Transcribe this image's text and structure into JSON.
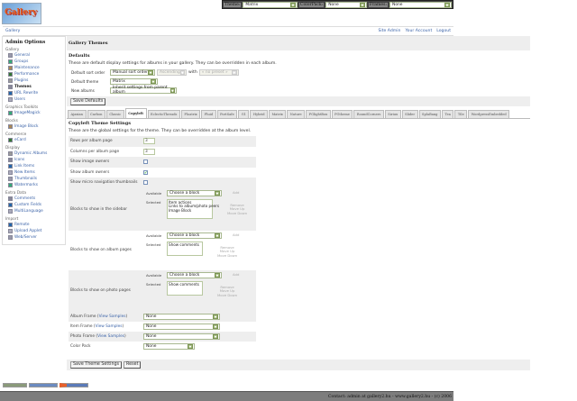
{
  "topbar": {
    "theme_label": "Theme:",
    "theme_value": "Matrix",
    "colorpack_label": "ColorPack:",
    "colorpack_value": "None",
    "frames_label": "Frames:",
    "frames_value": "None"
  },
  "logo": {
    "text": "Gallery"
  },
  "breadcrumb": {
    "root": "Gallery",
    "links": [
      "Site Admin",
      "Your Account",
      "Logout"
    ]
  },
  "sidebar": {
    "title": "Admin Options",
    "groups": [
      {
        "label": "Gallery",
        "items": [
          "General",
          "Groups",
          "Maintenance",
          "Performance",
          "Plugins",
          "Themes",
          "URL Rewrite",
          "Users"
        ]
      },
      {
        "label": "Graphics Toolkits",
        "items": [
          "ImageMagick"
        ]
      },
      {
        "label": "Blocks",
        "items": [
          "Image Block"
        ]
      },
      {
        "label": "Commerce",
        "items": [
          "eCard"
        ]
      },
      {
        "label": "Display",
        "items": [
          "Dynamic Albums",
          "Icons",
          "Link Items",
          "New Items",
          "Thumbnails",
          "Watermarks"
        ]
      },
      {
        "label": "Extra Data",
        "items": [
          "Comments",
          "Custom Fields",
          "MultiLanguage"
        ]
      },
      {
        "label": "Import",
        "items": [
          "Remote",
          "Upload Applet",
          "Web/Server"
        ]
      }
    ],
    "current": "Themes"
  },
  "main": {
    "title": "Gallery Themes",
    "defaults": {
      "heading": "Defaults",
      "description": "These are default display settings for albums in your gallery. They can be overridden in each album.",
      "sort_label": "Default sort order",
      "sort_value": "Manual sort order",
      "direction_value": "Ascending",
      "with_label": "with",
      "preset_value": "« no preset »",
      "theme_label": "Default theme",
      "theme_value": "Matrix",
      "new_albums_label": "New albums",
      "new_albums_value": "Inherit settings from parent album",
      "save_button": "Save Defaults"
    },
    "tabs": [
      "Ajaxian",
      "Carbon",
      "Classic",
      "Copyleft",
      "EclecticThreads",
      "Floatrix",
      "Fluid",
      "PortSafe",
      "G1",
      "Hybrid",
      "Matrix",
      "Nature",
      "PGlightBox",
      "PGtheme",
      "RoundCorners",
      "Siriux",
      "Slider",
      "SplaBang",
      "Tea",
      "Tile",
      "WordpressEmbedded"
    ],
    "active_tab": "Copyleft",
    "settings": {
      "heading": "Copyleft Theme Settings",
      "description": "These are the global settings for the theme. They can be overridden at the album level.",
      "rows_label": "Rows per album page",
      "rows_value": "3",
      "cols_label": "Columns per album page",
      "cols_value": "3",
      "show_image_owners": "Show image owners",
      "show_image_owners_checked": false,
      "show_album_owners": "Show album owners",
      "show_album_owners_checked": true,
      "show_micro_nav": "Show micro navigation thumbnails",
      "show_micro_nav_checked": false,
      "available_label": "Available",
      "selected_label": "Selected",
      "choose": "Choose a block",
      "add": "Add",
      "remove": "Remove",
      "move_up": "Move Up",
      "move_down": "Move Down",
      "blocks": [
        {
          "label": "Blocks to show in the sidebar",
          "selected": "Item actions\nLinks to album/photo peers\nImage Block"
        },
        {
          "label": "Blocks to show on album pages",
          "selected": "Show comments"
        },
        {
          "label": "Blocks to show on photo pages",
          "selected": "Show comments"
        }
      ],
      "album_frame_label": "Album Frame",
      "item_frame_label": "Item Frame",
      "photo_frame_label": "Photo Frame",
      "view_samples": "View Samples",
      "frame_value": "None",
      "color_pack_label": "Color Pack",
      "color_pack_value": "None",
      "save_button": "Save Theme Settings",
      "reset_button": "Reset"
    }
  },
  "footer": {
    "text": "Contact: admin at gallery2.hu - www.gallery2.hu - (c) 2006"
  },
  "colors": {
    "link": "#3b63a8",
    "header_bg": "#eeeeee",
    "footer_bg": "#7d7d7d",
    "select_arrow": "#9bb474"
  }
}
